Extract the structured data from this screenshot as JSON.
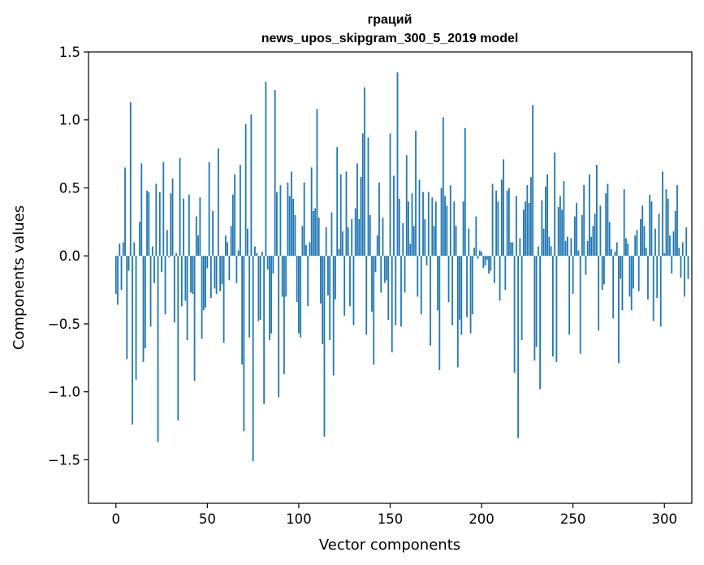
{
  "chart_data": {
    "type": "bar",
    "title_line1": "граций",
    "title_line2": "news_upos_skipgram_300_5_2019 model",
    "xlabel": "Vector components",
    "ylabel": "Components values",
    "xlim": [
      -15,
      315
    ],
    "ylim": [
      -1.82,
      1.5
    ],
    "x_ticks": [
      0,
      50,
      100,
      150,
      200,
      250,
      300
    ],
    "x_tick_labels": [
      "0",
      "50",
      "100",
      "150",
      "200",
      "250",
      "300"
    ],
    "y_ticks": [
      1.5,
      1.0,
      0.5,
      0.0,
      -0.5,
      -1.0,
      -1.5
    ],
    "y_tick_labels": [
      "1.5",
      "1.0",
      "0.5",
      "0.0",
      "−0.5",
      "−1.0",
      "−1.5"
    ],
    "bar_color": "#1f77b4",
    "values": [
      -0.28,
      -0.36,
      0.09,
      -0.25,
      0.1,
      0.65,
      -0.76,
      -0.11,
      1.13,
      -1.24,
      0.1,
      -0.91,
      0.0,
      0.25,
      0.68,
      -0.78,
      -0.68,
      0.48,
      0.47,
      -0.52,
      0.07,
      -0.2,
      0.53,
      -1.37,
      0.47,
      -0.12,
      0.69,
      -0.43,
      0.19,
      -0.01,
      0.46,
      0.57,
      -0.49,
      0.02,
      -1.21,
      0.72,
      -0.37,
      0.42,
      -0.33,
      -0.62,
      0.45,
      -0.27,
      -0.28,
      -0.92,
      0.29,
      0.15,
      0.43,
      -0.61,
      -0.4,
      -0.38,
      -0.09,
      0.69,
      -0.31,
      0.33,
      -0.24,
      -0.28,
      0.79,
      -0.26,
      -0.21,
      -0.64,
      0.15,
      0.1,
      -0.18,
      0.22,
      0.45,
      0.6,
      -0.2,
      0.04,
      0.67,
      -0.8,
      -1.29,
      0.97,
      0.2,
      -0.6,
      1.04,
      -1.51,
      0.07,
      0.02,
      -0.48,
      -0.47,
      0.03,
      -1.09,
      1.28,
      -0.1,
      -0.62,
      -0.57,
      -0.13,
      1.22,
      0.47,
      -1.04,
      0.52,
      -0.3,
      -0.87,
      -0.3,
      0.54,
      0.44,
      0.62,
      0.42,
      0.3,
      -0.34,
      -0.57,
      -0.6,
      0.22,
      0.54,
      0.08,
      -0.37,
      0.1,
      0.65,
      0.33,
      0.35,
      1.08,
      0.28,
      -0.35,
      -0.65,
      -1.33,
      0.21,
      -0.29,
      -0.62,
      0.32,
      -0.88,
      -0.32,
      0.8,
      0.05,
      0.6,
      0.18,
      -0.44,
      0.62,
      0.21,
      -0.37,
      0.27,
      -0.51,
      0.35,
      0.68,
      0.27,
      0.58,
      0.9,
      1.24,
      -0.58,
      0.87,
      0.3,
      -0.41,
      -0.8,
      -0.12,
      0.15,
      0.54,
      -0.27,
      0.28,
      -0.2,
      -0.18,
      -0.47,
      0.9,
      -0.71,
      0.59,
      -0.51,
      1.35,
      0.42,
      -0.52,
      0.24,
      -0.27,
      0.74,
      0.4,
      0.09,
      0.46,
      0.22,
      0.92,
      -0.3,
      0.56,
      -0.43,
      0.47,
      0.27,
      -0.07,
      0.47,
      -0.66,
      0.43,
      0.22,
      0.4,
      -0.4,
      -0.84,
      0.5,
      1.02,
      0.44,
      0.37,
      -0.34,
      0.52,
      -0.51,
      0.4,
      0.22,
      -0.82,
      -0.47,
      -0.58,
      0.4,
      0.94,
      -0.45,
      0.2,
      -0.57,
      -0.43,
      0.06,
      0.29,
      -0.02,
      0.04,
      0.03,
      -0.09,
      -0.07,
      -0.03,
      -0.13,
      -0.11,
      0.53,
      -0.2,
      0.48,
      0.4,
      -0.33,
      0.56,
      0.71,
      -0.25,
      0.48,
      0.5,
      0.1,
      0.1,
      -0.86,
      0.44,
      -1.34,
      0.13,
      -0.62,
      0.34,
      0.4,
      0.52,
      0.39,
      0.58,
      1.11,
      -0.77,
      -0.67,
      0.07,
      -0.98,
      0.41,
      0.2,
      0.51,
      0.6,
      0.14,
      0.07,
      -0.74,
      0.76,
      -0.78,
      0.36,
      0.44,
      0.34,
      0.55,
      0.11,
      0.14,
      -0.58,
      0.13,
      -0.28,
      0.29,
      0.39,
      0.04,
      -0.72,
      0.3,
      0.52,
      -0.14,
      0.11,
      0.6,
      0.14,
      0.22,
      0.31,
      0.67,
      -0.55,
      0.37,
      -0.25,
      -0.21,
      0.46,
      0.53,
      0.25,
      0.05,
      -0.46,
      0.03,
      0.1,
      -0.79,
      -0.17,
      -0.4,
      0.49,
      0.13,
      0.09,
      -0.3,
      -0.4,
      -0.24,
      0.15,
      0.19,
      -0.26,
      0.27,
      0.37,
      0.22,
      0.06,
      -0.32,
      0.45,
      0.4,
      -0.48,
      0.2,
      -0.31,
      0.31,
      -0.52,
      0.62,
      0.02,
      0.49,
      0.42,
      0.15,
      -0.13,
      0.18,
      0.33,
      0.52,
      0.06,
      -0.16,
      0.1,
      -0.3,
      0.21,
      -0.17
    ]
  }
}
